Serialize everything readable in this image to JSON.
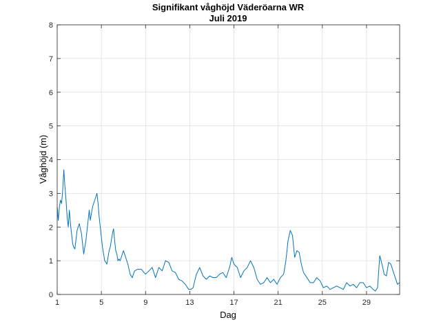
{
  "chart_data": {
    "type": "line",
    "title": "Signifikant våghöjd Väderöarna WR",
    "subtitle": "Juli 2019",
    "xlabel": "Dag",
    "ylabel": "Våghöjd (m)",
    "xlim": [
      1,
      32
    ],
    "ylim": [
      0,
      8
    ],
    "xticks": [
      1,
      5,
      9,
      13,
      17,
      21,
      25,
      29
    ],
    "yticks": [
      0,
      1,
      2,
      3,
      4,
      5,
      6,
      7,
      8
    ],
    "grid": true,
    "legend": "none",
    "line_color": "#0072bd",
    "series": [
      {
        "x": [
          1.0,
          1.1,
          1.2,
          1.3,
          1.4,
          1.5,
          1.6,
          1.7,
          1.8,
          1.9,
          2.0,
          2.1,
          2.2,
          2.3,
          2.4,
          2.5,
          2.6,
          2.8,
          3.0,
          3.2,
          3.3,
          3.4,
          3.6,
          3.8,
          3.9,
          4.0,
          4.2,
          4.4,
          4.6,
          4.7,
          4.8,
          4.9,
          5.0,
          5.1,
          5.2,
          5.3,
          5.4,
          5.5,
          5.6,
          5.7,
          5.8,
          5.9,
          6.0,
          6.1,
          6.2,
          6.3,
          6.4,
          6.5,
          6.6,
          6.7,
          6.8,
          7.0,
          7.2,
          7.4,
          7.6,
          7.8,
          8.0,
          8.3,
          8.6,
          9.0,
          9.3,
          9.6,
          9.9,
          10.2,
          10.5,
          10.8,
          11.1,
          11.4,
          11.7,
          12.0,
          12.3,
          12.6,
          12.9,
          13.1,
          13.3,
          13.6,
          13.9,
          14.2,
          14.5,
          14.8,
          15.1,
          15.4,
          15.7,
          16.0,
          16.3,
          16.6,
          16.8,
          17.0,
          17.3,
          17.6,
          17.9,
          18.2,
          18.5,
          18.8,
          19.1,
          19.4,
          19.7,
          20.0,
          20.3,
          20.6,
          20.9,
          21.2,
          21.5,
          21.7,
          21.9,
          22.1,
          22.3,
          22.5,
          22.7,
          22.9,
          23.1,
          23.3,
          23.6,
          23.9,
          24.2,
          24.5,
          24.8,
          25.1,
          25.4,
          25.7,
          26.0,
          26.3,
          26.6,
          26.9,
          27.2,
          27.5,
          27.8,
          28.1,
          28.4,
          28.7,
          29.0,
          29.3,
          29.6,
          29.8,
          30.0,
          30.2,
          30.4,
          30.6,
          30.8,
          31.0,
          31.2,
          31.4,
          31.6,
          31.8,
          32.0
        ],
        "y": [
          2.6,
          2.2,
          2.6,
          2.8,
          2.7,
          3.1,
          3.7,
          3.2,
          2.8,
          2.3,
          2.0,
          2.5,
          2.1,
          1.8,
          1.5,
          1.4,
          1.35,
          1.9,
          2.1,
          1.8,
          1.5,
          1.2,
          1.6,
          2.2,
          2.5,
          2.2,
          2.6,
          2.8,
          3.0,
          2.7,
          2.3,
          2.0,
          1.7,
          1.4,
          1.2,
          1.0,
          0.95,
          0.9,
          1.1,
          1.3,
          1.4,
          1.6,
          1.8,
          1.95,
          1.6,
          1.3,
          1.2,
          1.0,
          1.05,
          1.0,
          1.1,
          1.3,
          1.1,
          0.9,
          0.6,
          0.5,
          0.7,
          0.75,
          0.75,
          0.6,
          0.7,
          0.8,
          0.5,
          0.8,
          0.7,
          1.0,
          0.95,
          0.7,
          0.65,
          0.45,
          0.4,
          0.3,
          0.15,
          0.15,
          0.2,
          0.6,
          0.8,
          0.55,
          0.45,
          0.55,
          0.5,
          0.5,
          0.6,
          0.65,
          0.5,
          0.8,
          1.1,
          0.9,
          0.8,
          0.5,
          0.7,
          0.8,
          1.0,
          0.8,
          0.45,
          0.3,
          0.35,
          0.5,
          0.35,
          0.45,
          0.3,
          0.5,
          0.6,
          1.0,
          1.6,
          1.9,
          1.75,
          1.1,
          1.3,
          1.25,
          0.9,
          0.65,
          0.5,
          0.35,
          0.35,
          0.5,
          0.4,
          0.2,
          0.25,
          0.15,
          0.2,
          0.25,
          0.2,
          0.15,
          0.35,
          0.25,
          0.3,
          0.2,
          0.35,
          0.35,
          0.2,
          0.25,
          0.15,
          0.1,
          0.2,
          1.15,
          0.9,
          0.6,
          0.55,
          0.95,
          0.9,
          0.7,
          0.5,
          0.3,
          0.35
        ]
      }
    ]
  }
}
